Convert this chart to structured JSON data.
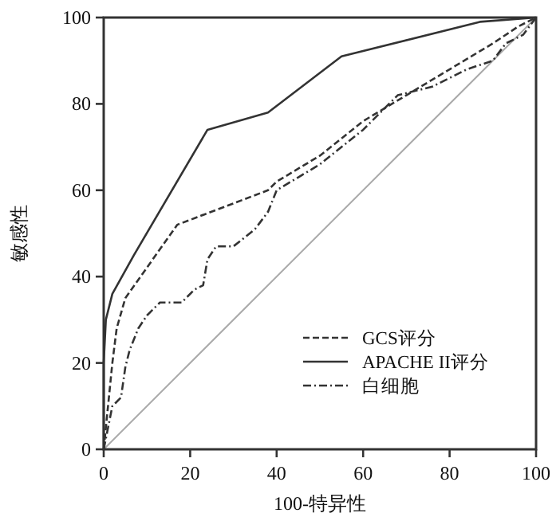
{
  "chart_data": {
    "type": "line",
    "xlabel": "100-特异性",
    "ylabel": "敏感性",
    "xlim": [
      0,
      100
    ],
    "ylim": [
      0,
      100
    ],
    "xticks": [
      0,
      20,
      40,
      60,
      80,
      100
    ],
    "yticks": [
      0,
      20,
      40,
      60,
      80,
      100
    ],
    "grid": false,
    "legend": "bottom right",
    "series": [
      {
        "name": "GCS评分",
        "color": "#333333",
        "line_style": "dashed",
        "x": [
          0,
          1,
          2,
          3,
          5,
          17,
          38,
          40,
          50,
          60,
          70,
          80,
          90,
          96,
          100
        ],
        "values": [
          0,
          10,
          20,
          28,
          35,
          52,
          60,
          62,
          68,
          76,
          82,
          88,
          94,
          98,
          100
        ]
      },
      {
        "name": "APACHE II评分",
        "color": "#333333",
        "line_style": "solid",
        "x": [
          0,
          0,
          0.5,
          2,
          7,
          24,
          38,
          55,
          87,
          100
        ],
        "values": [
          0,
          20,
          30,
          36,
          45,
          74,
          78,
          91,
          99,
          100
        ]
      },
      {
        "name": "白细胞",
        "color": "#333333",
        "line_style": "dashdot",
        "x": [
          0,
          1,
          2,
          4,
          5,
          6,
          8,
          10,
          13,
          18,
          21,
          23,
          24,
          26,
          30,
          35,
          38,
          40,
          45,
          50,
          55,
          60,
          68,
          76,
          84,
          90,
          93,
          97,
          100
        ],
        "values": [
          0,
          5,
          10,
          12,
          19,
          23,
          28,
          31,
          34,
          34,
          37,
          38,
          44,
          47,
          47,
          51,
          55,
          60,
          63,
          66,
          70,
          74,
          82,
          84,
          88,
          90,
          94,
          96,
          100
        ]
      },
      {
        "color": "#aaaaaa",
        "line_style": "solid",
        "x": [
          0,
          100
        ],
        "values": [
          0,
          100
        ]
      }
    ]
  }
}
